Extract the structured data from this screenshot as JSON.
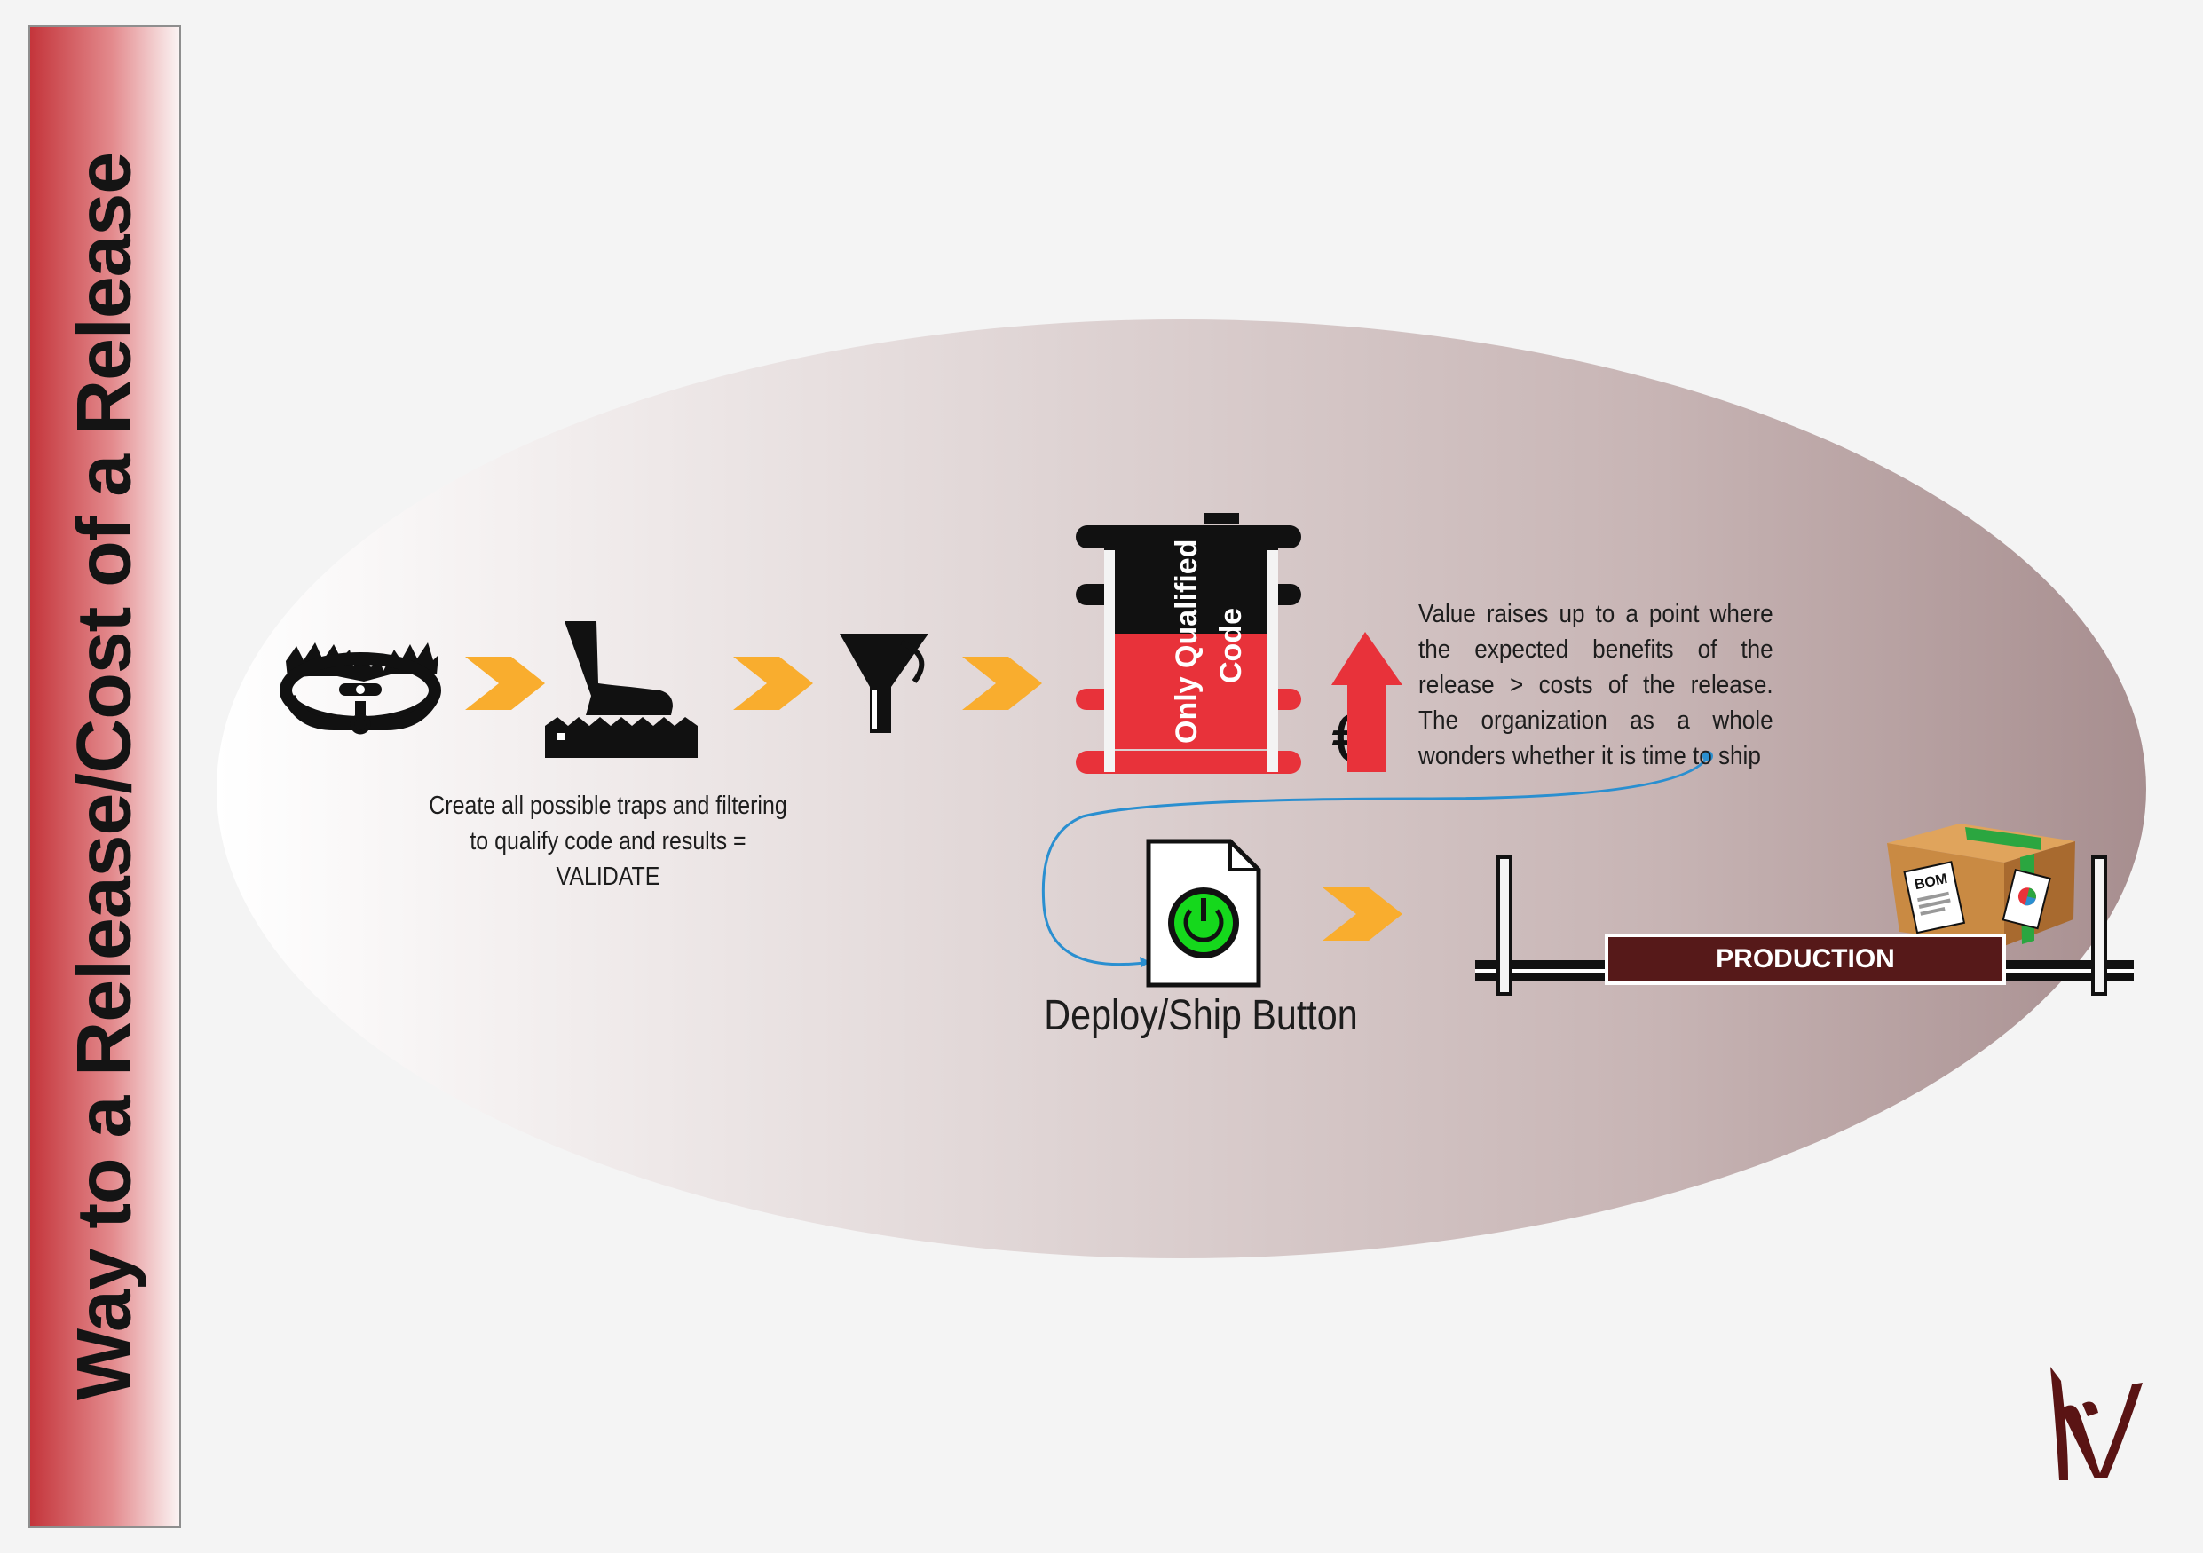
{
  "title": "Way to a Release/Cost of a Release",
  "steps": {
    "validate_caption_line1": "Create all possible traps and filtering",
    "validate_caption_line2": "to qualify code and results =",
    "validate_caption_line3": "VALIDATE"
  },
  "container": {
    "label_line1": "Only Qualified",
    "label_line2": "Code"
  },
  "value": {
    "currency_symbol": "€",
    "caption": "Value raises up to a point where the expected benefits of the release > costs of the release. The organization as a whole wonders whether it is time to ship"
  },
  "deploy": {
    "caption": "Deploy/Ship Button"
  },
  "production": {
    "label": "PRODUCTION",
    "box_label": "BOM"
  },
  "icons": [
    "bear-trap-icon",
    "arrow-chevron-icon",
    "boot-stepping-trap-icon",
    "funnel-filter-icon",
    "barrel-container-icon",
    "euro-icon",
    "up-arrow-icon",
    "power-button-icon",
    "parcel-box-icon",
    "logo-icon"
  ],
  "colors": {
    "sidebar_red": "#c4353b",
    "chevron_orange": "#f9ad2e",
    "container_red": "#e8323a",
    "container_black": "#111111",
    "arrow_red": "#e8323a",
    "power_green": "#15d81c",
    "connector_blue": "#2a8fd0",
    "production_maroon": "#561919",
    "box_brown": "#c98a43",
    "logo_maroon": "#5a1414"
  }
}
